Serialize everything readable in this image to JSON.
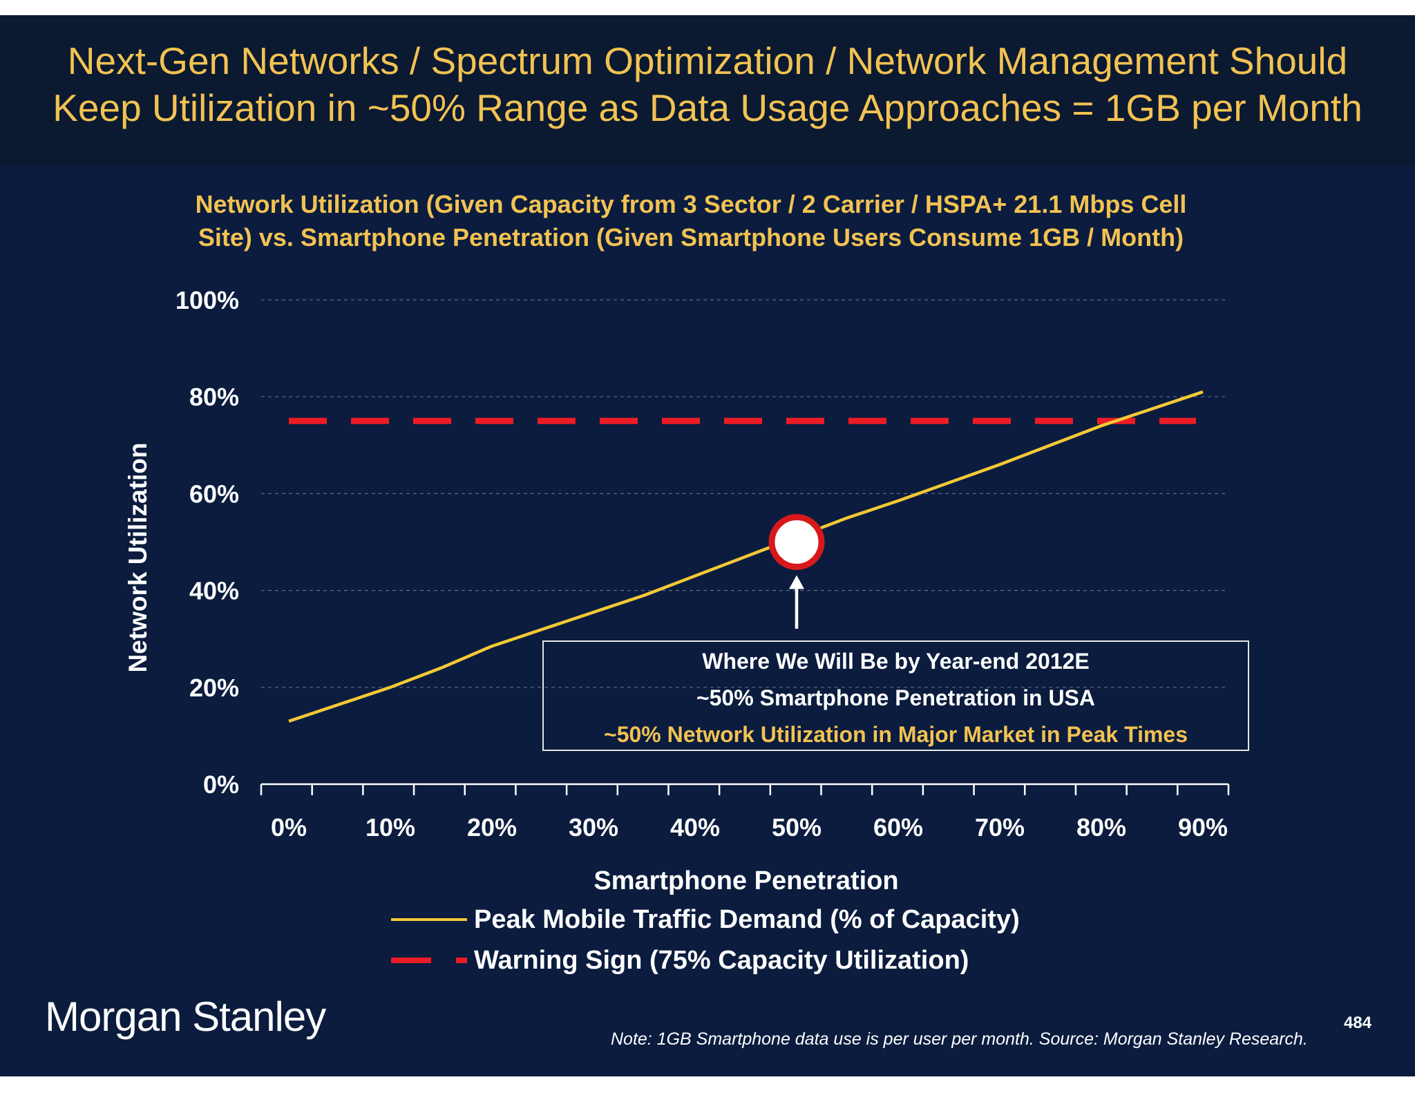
{
  "slide": {
    "title": "Next-Gen Networks / Spectrum Optimization / Network Management Should\nKeep Utilization in ~50% Range as Data Usage Approaches = 1GB per Month",
    "logo_text": "Morgan Stanley",
    "source_note": "Note: 1GB Smartphone data use is per user per month. Source: Morgan Stanley Research.",
    "page_number": "484"
  },
  "colors": {
    "background": "#0b1c3e",
    "header_band": "#0b1a31",
    "title_text": "#f2c252",
    "demand_line": "#f4c935",
    "warning_line": "#ec1c24",
    "marker_outline": "#d7191c",
    "marker_fill": "#ffffff"
  },
  "chart_data": {
    "type": "line",
    "title": "Network Utilization (Given Capacity from 3 Sector / 2 Carrier / HSPA+ 21.1 Mbps Cell\nSite) vs. Smartphone Penetration (Given Smartphone Users Consume 1GB / Month)",
    "xlabel": "Smartphone Penetration",
    "ylabel": "Network Utilization",
    "xlim": [
      0,
      95
    ],
    "ylim": [
      0,
      100
    ],
    "x_ticks": [
      "0%",
      "10%",
      "20%",
      "30%",
      "40%",
      "50%",
      "60%",
      "70%",
      "80%",
      "90%"
    ],
    "y_ticks": [
      "0%",
      "20%",
      "40%",
      "60%",
      "80%",
      "100%"
    ],
    "grid": "horizontal dashed",
    "series": [
      {
        "name": "Peak Mobile Traffic Demand (% of Capacity)",
        "style": "solid",
        "x": [
          0,
          10,
          15,
          20,
          30,
          35,
          40,
          50,
          55,
          60,
          70,
          80,
          90
        ],
        "y": [
          13,
          20,
          24,
          28.5,
          35.5,
          39,
          43,
          51,
          55,
          58.5,
          66,
          74,
          81
        ]
      },
      {
        "name": "Warning Sign (75% Capacity Utilization)",
        "style": "dashed",
        "x": [
          0,
          90
        ],
        "y": [
          75,
          75
        ]
      }
    ],
    "highlight_point": {
      "x": 50,
      "y": 50
    },
    "annotation": {
      "line1": "Where We Will Be by Year-end 2012E",
      "line2": "~50% Smartphone Penetration in USA",
      "line3": "~50% Network Utilization in Major Market in Peak Times"
    },
    "legend_position": "bottom"
  }
}
